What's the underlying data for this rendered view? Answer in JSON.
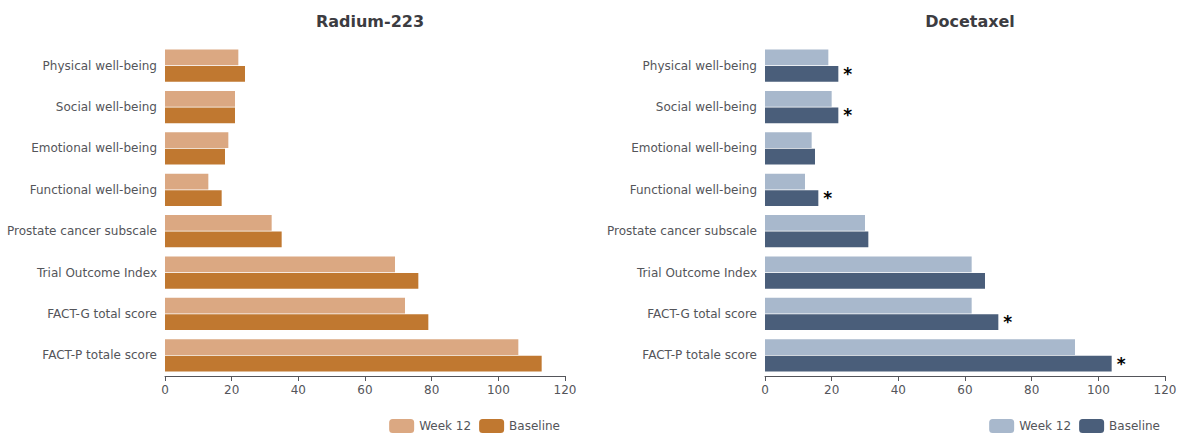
{
  "chart_data": [
    {
      "type": "bar",
      "orientation": "horizontal",
      "title": "Radium-223",
      "categories": [
        "FACT-P totale score",
        "FACT-G total score",
        "Trial Outcome Index",
        "Prostate cancer subscale",
        "Functional well-being",
        "Emotional well-being",
        "Social well-being",
        "Physical well-being"
      ],
      "series": [
        {
          "name": "Week 12",
          "color": "#DBA882",
          "values": [
            106,
            72,
            69,
            32,
            13,
            19,
            21,
            22
          ]
        },
        {
          "name": "Baseline",
          "color": "#C07830",
          "values": [
            113,
            79,
            76,
            35,
            17,
            18,
            21,
            24
          ]
        }
      ],
      "xlim": [
        0,
        120
      ],
      "xticks": [
        0,
        20,
        40,
        60,
        80,
        100,
        120
      ],
      "grid": false,
      "legend": "lower right"
    },
    {
      "type": "bar",
      "orientation": "horizontal",
      "title": "Docetaxel",
      "categories": [
        "FACT-P totale score",
        "FACT-G total score",
        "Trial Outcome Index",
        "Prostate cancer subscale",
        "Functional well-being",
        "Emotional well-being",
        "Social well-being",
        "Physical well-being"
      ],
      "series": [
        {
          "name": "Week 12",
          "color": "#A8B8CC",
          "values": [
            93,
            62,
            62,
            30,
            12,
            14,
            20,
            19
          ]
        },
        {
          "name": "Baseline",
          "color": "#4A5E7A",
          "values": [
            104,
            70,
            66,
            31,
            16,
            15,
            22,
            22
          ]
        }
      ],
      "xlim": [
        0,
        120
      ],
      "xticks": [
        0,
        20,
        40,
        60,
        80,
        100,
        120
      ],
      "grid": false,
      "legend": "lower right",
      "annotations": [
        {
          "text": "*",
          "category": "FACT-P totale score"
        },
        {
          "text": "*",
          "category": "FACT-G total score"
        },
        {
          "text": "*",
          "category": "Functional well-being"
        },
        {
          "text": "*",
          "category": "Social well-being"
        },
        {
          "text": "*",
          "category": "Physical well-being"
        }
      ]
    }
  ]
}
